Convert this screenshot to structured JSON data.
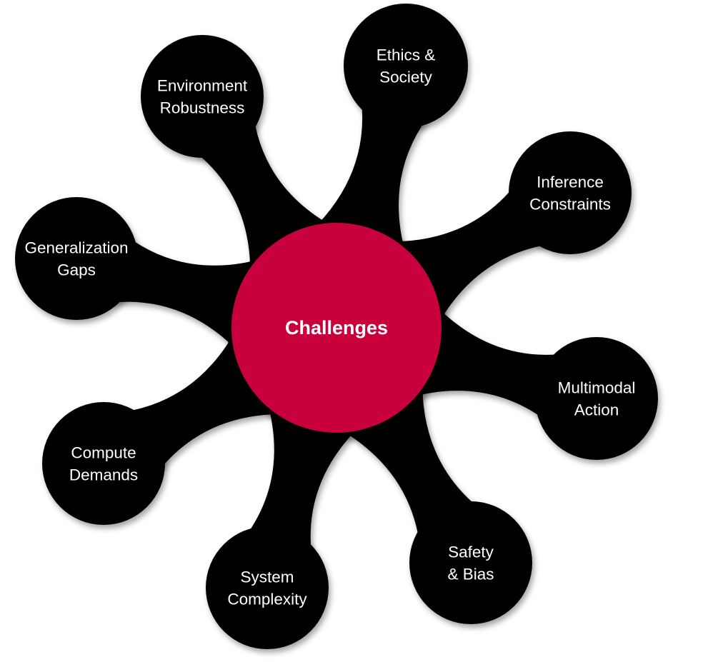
{
  "diagram": {
    "center": {
      "label": "Challenges",
      "color": "#c8003a"
    },
    "node_color": "#000000",
    "text_color": "#ffffff",
    "nodes": [
      {
        "id": "environment-robustness",
        "lines": [
          "Environment",
          "Robustness"
        ]
      },
      {
        "id": "ethics-society",
        "lines": [
          "Ethics &",
          "Society"
        ]
      },
      {
        "id": "inference-constraints",
        "lines": [
          "Inference",
          "Constraints"
        ]
      },
      {
        "id": "multimodal-action",
        "lines": [
          "Multimodal",
          "Action"
        ]
      },
      {
        "id": "safety-bias",
        "lines": [
          "Safety",
          "& Bias"
        ]
      },
      {
        "id": "system-complexity",
        "lines": [
          "System",
          "Complexity"
        ]
      },
      {
        "id": "compute-demands",
        "lines": [
          "Compute",
          "Demands"
        ]
      },
      {
        "id": "generalization-gaps",
        "lines": [
          "Generalization",
          "Gaps"
        ]
      }
    ]
  }
}
